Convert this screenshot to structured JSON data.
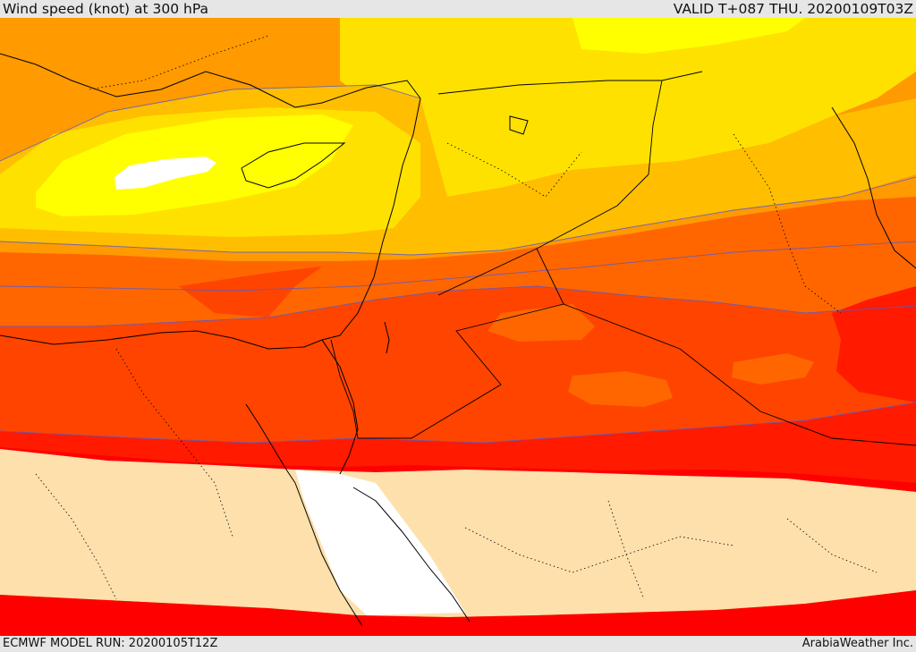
{
  "header": {
    "title": "Wind speed (knot) at 300 hPa",
    "valid": "VALID T+087 THU. 20200109T03Z"
  },
  "footer": {
    "model_run": "ECMWF MODEL RUN: 20200105T12Z",
    "credit": "ArabiaWeather Inc."
  },
  "colors": {
    "white": "#ffffff",
    "yellow_bright": "#ffff00",
    "yellow": "#ffe100",
    "amber": "#ffbe00",
    "orange_light": "#ff9a00",
    "orange": "#ff6600",
    "orange_red": "#ff4400",
    "red": "#ff1a00",
    "red_deep": "#ff0000",
    "sand": "#fde0ac",
    "contour": "#5a5ac8",
    "coast": "#000000"
  }
}
